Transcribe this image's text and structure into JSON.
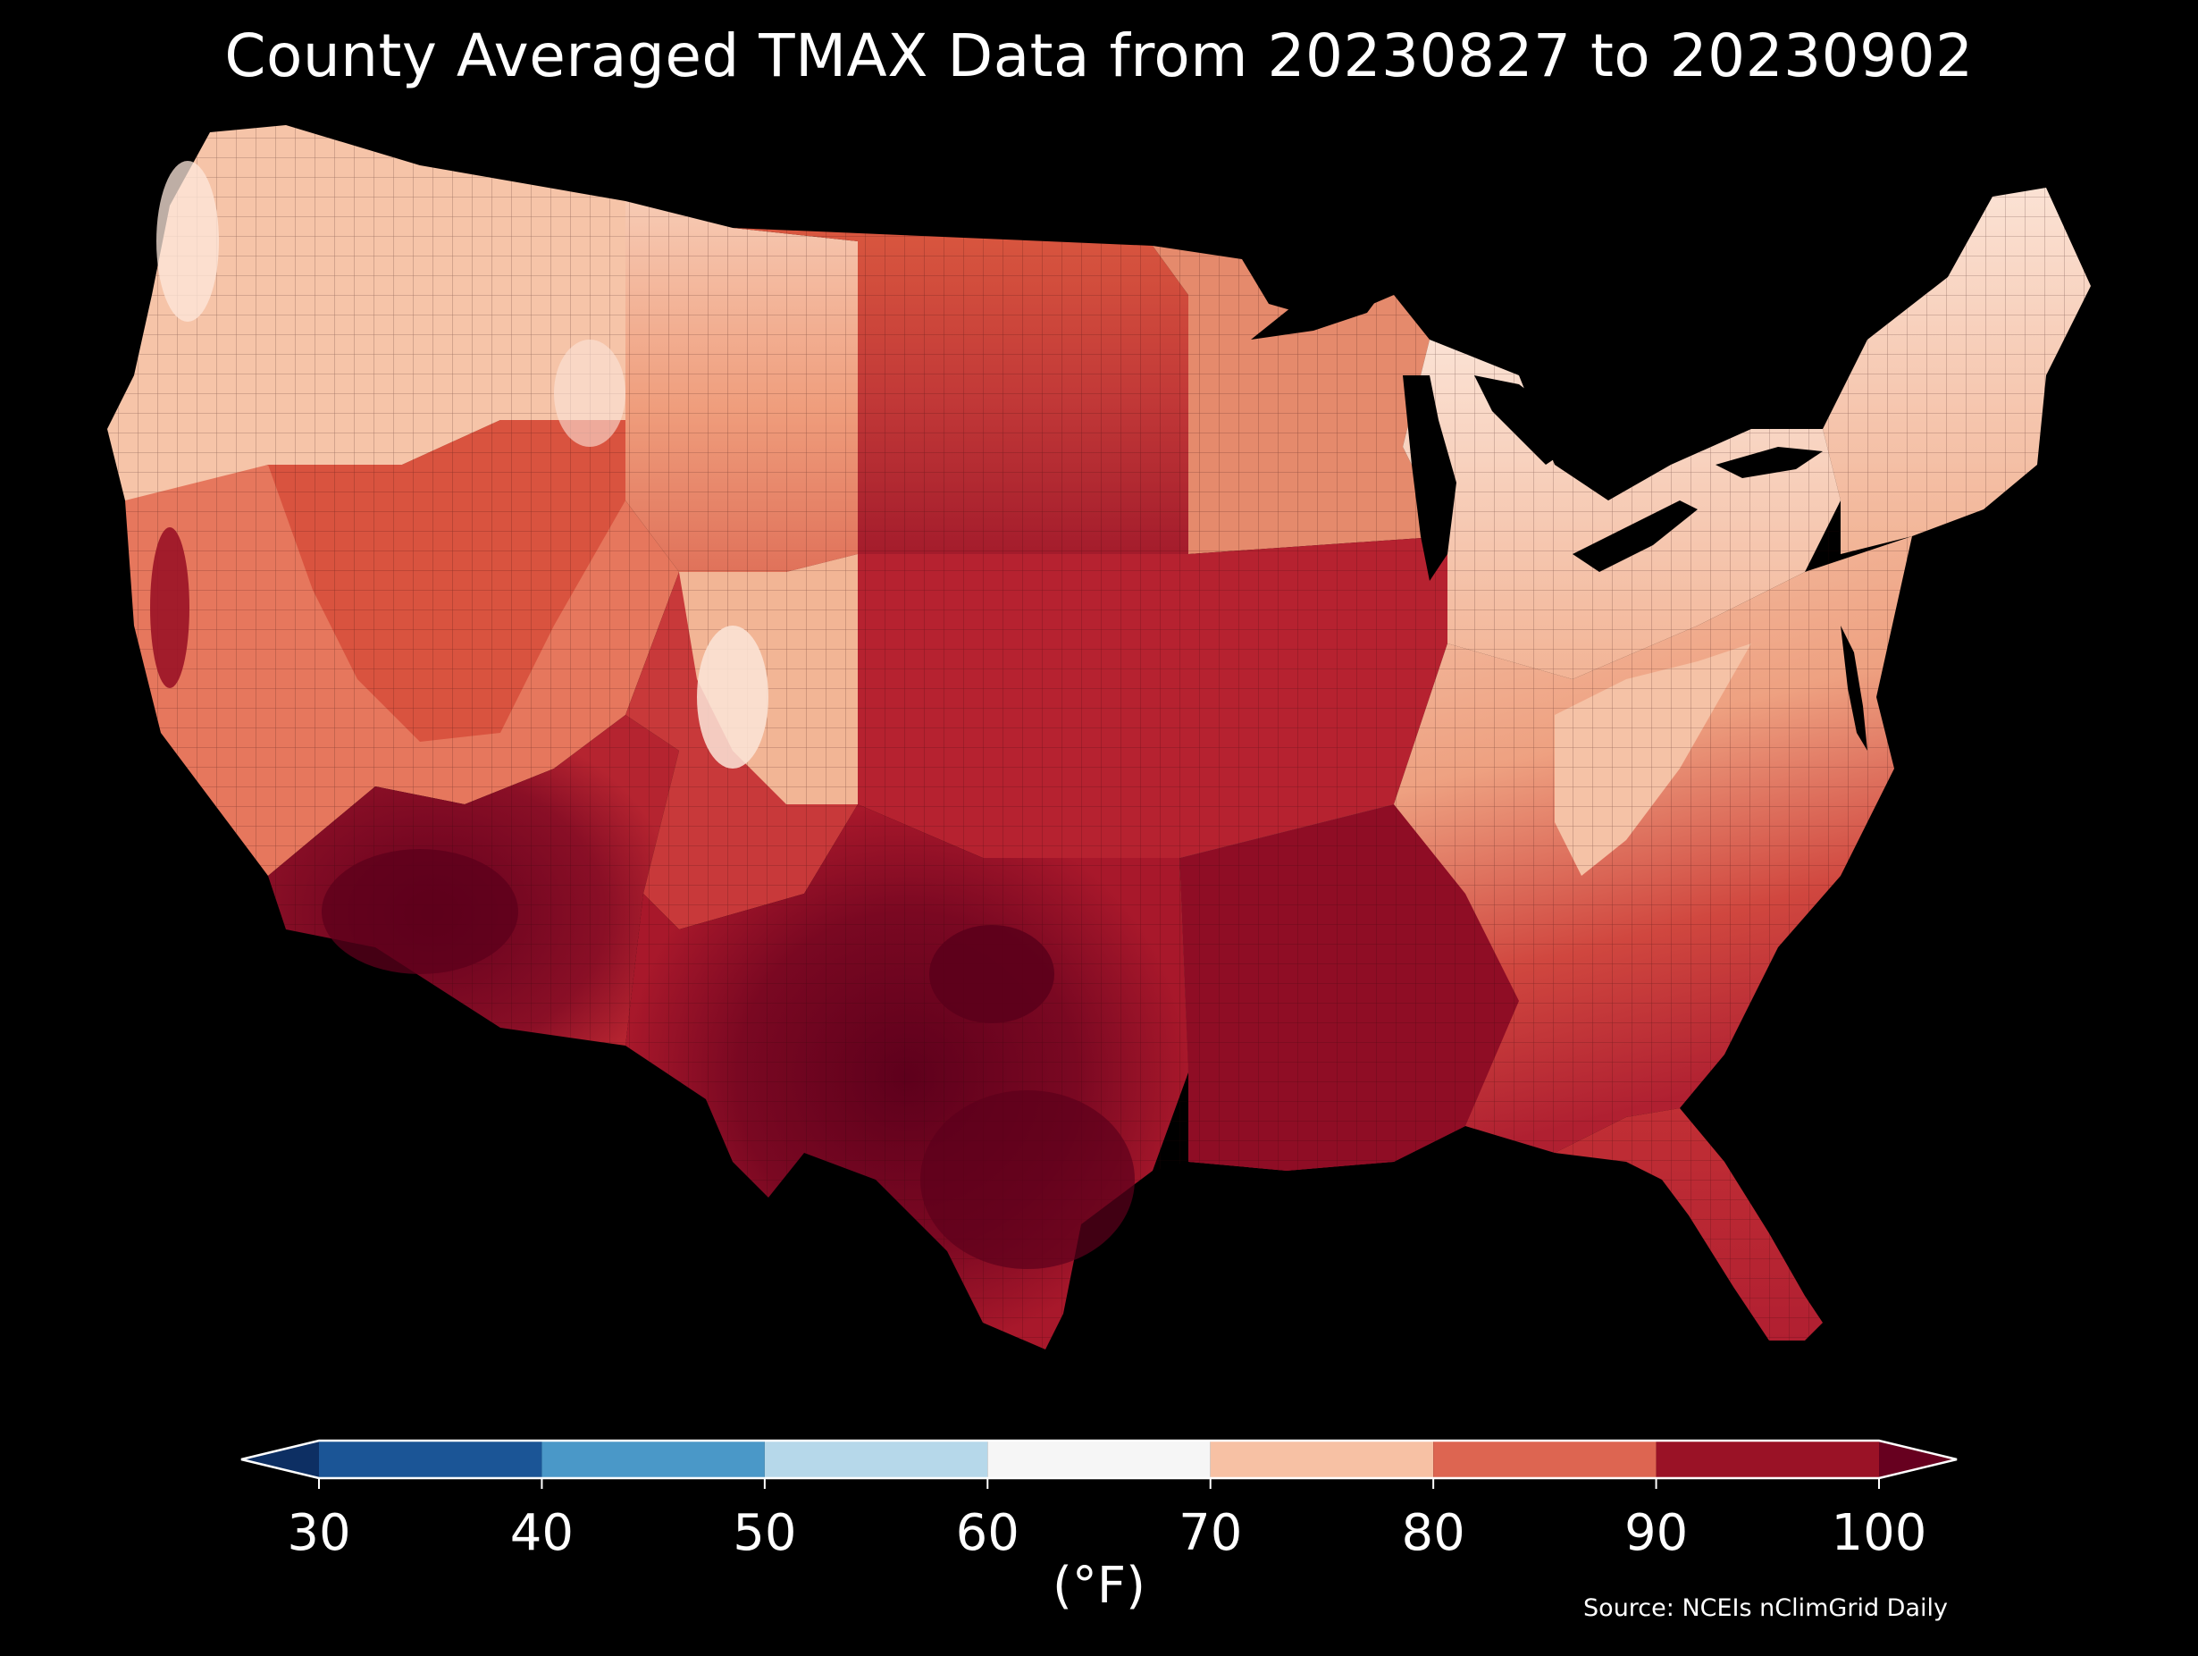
{
  "title": "County Averaged TMAX Data from 20230827 to 20230902",
  "source": "Source: NCEIs nClimGrid Daily",
  "colorbar": {
    "label": "(°F)",
    "ticks": [
      "30",
      "40",
      "50",
      "60",
      "70",
      "80",
      "90",
      "100"
    ],
    "min": 30,
    "max": 100,
    "extend": "both",
    "bins": [
      {
        "from": 30,
        "to": 40,
        "color": "#1b5596"
      },
      {
        "from": 40,
        "to": 50,
        "color": "#4a98c8"
      },
      {
        "from": 50,
        "to": 60,
        "color": "#b6d8ea"
      },
      {
        "from": 60,
        "to": 70,
        "color": "#f6f6f6"
      },
      {
        "from": 70,
        "to": 80,
        "color": "#f7c1a4"
      },
      {
        "from": 80,
        "to": 90,
        "color": "#dd6551"
      },
      {
        "from": 90,
        "to": 100,
        "color": "#9a1226"
      }
    ],
    "under_color": "#0d2f63",
    "over_color": "#67001f"
  },
  "map": {
    "region": "Contiguous United States",
    "variable": "TMAX",
    "units": "°F",
    "background": "#000000",
    "water_color": "#000000"
  }
}
